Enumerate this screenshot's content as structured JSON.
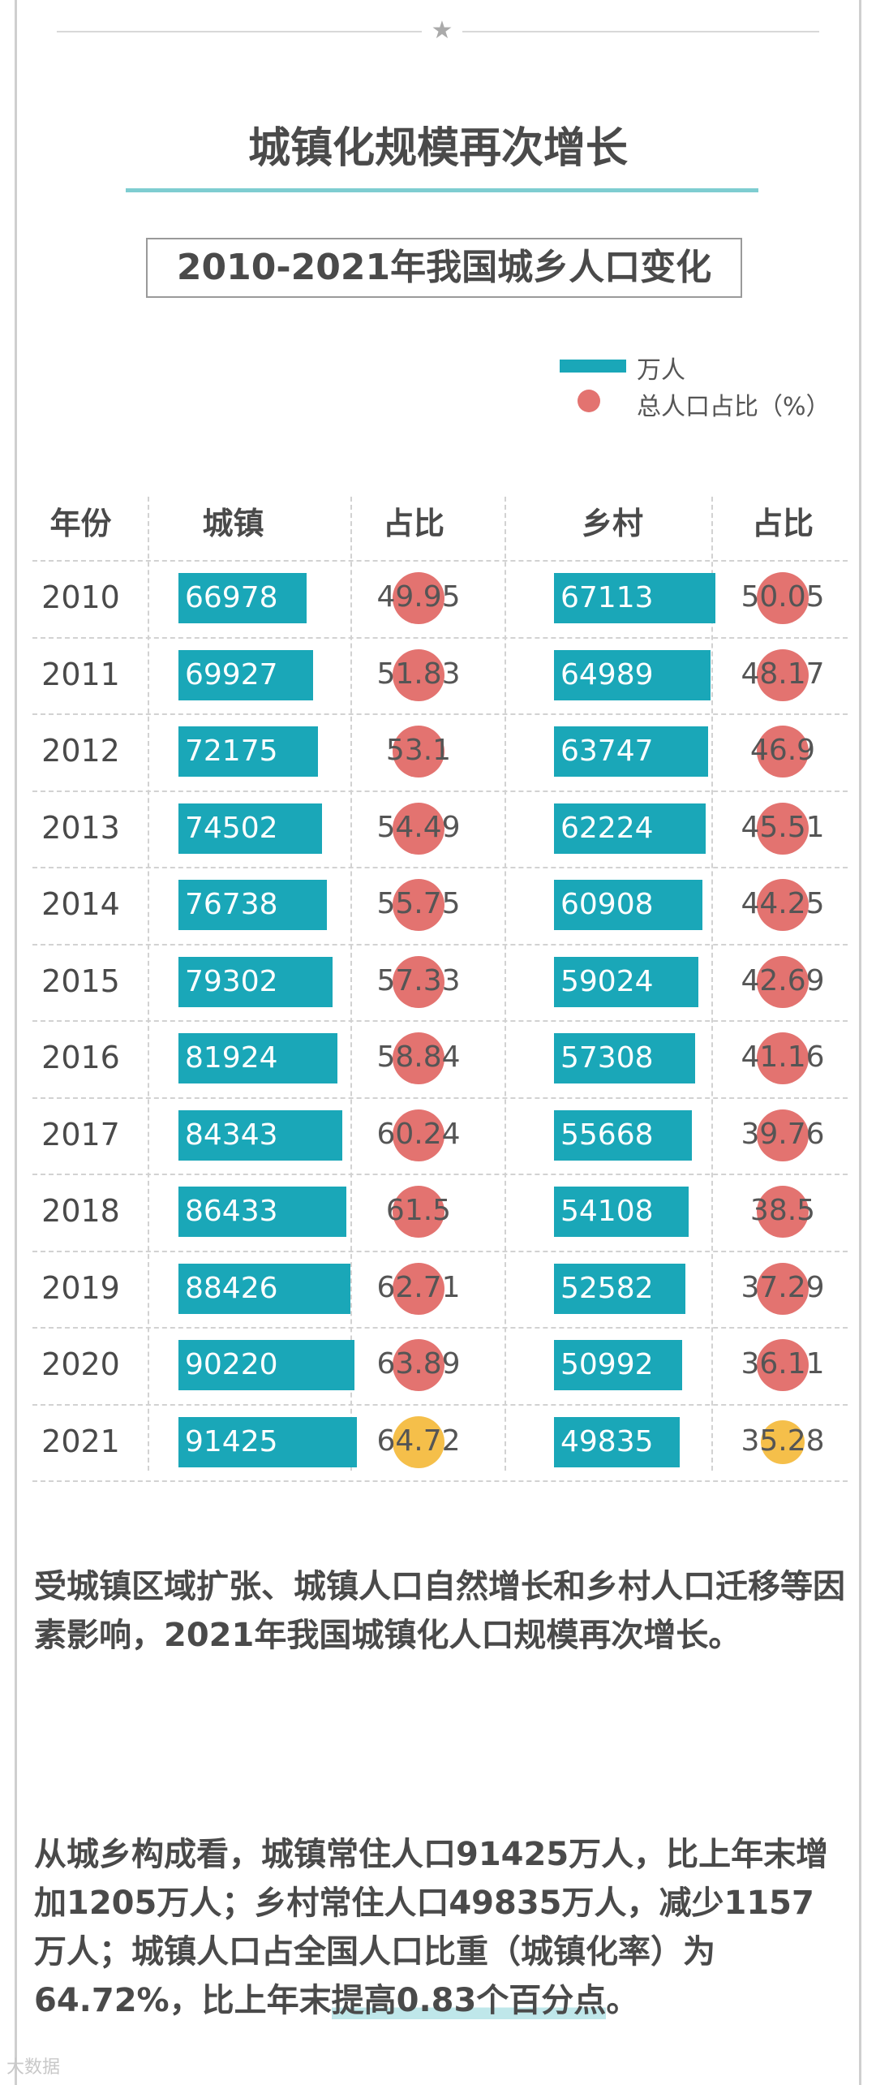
{
  "page": {
    "title": "城镇化规模再次增长",
    "subtitle": "2010-2021年我国城乡人口变化",
    "star_icon": "star-icon",
    "watermark": "大数据"
  },
  "legend": {
    "bar_label": "万人",
    "dot_label": "总人口占比（%）"
  },
  "colors": {
    "bar": "#1aa7b8",
    "dot": "#e37370",
    "dot_highlight": "#f5bf4a",
    "accent_line": "#7ecdd1"
  },
  "chart_data": {
    "type": "table",
    "columns": [
      "年份",
      "城镇",
      "占比",
      "乡村",
      "占比"
    ],
    "years": [
      "2010",
      "2011",
      "2012",
      "2013",
      "2014",
      "2015",
      "2016",
      "2017",
      "2018",
      "2019",
      "2020",
      "2021"
    ],
    "urban": [
      66978,
      69927,
      72175,
      74502,
      76738,
      79302,
      81924,
      84343,
      86433,
      88426,
      90220,
      91425
    ],
    "urban_pct": [
      "49.95",
      "51.83",
      "53.1",
      "54.49",
      "55.75",
      "57.33",
      "58.84",
      "60.24",
      "61.5",
      "62.71",
      "63.89",
      "64.72"
    ],
    "rural": [
      67113,
      64989,
      63747,
      62224,
      60908,
      59024,
      57308,
      55668,
      54108,
      52582,
      50992,
      49835
    ],
    "rural_pct": [
      "50.05",
      "48.17",
      "46.9",
      "45.51",
      "44.25",
      "42.69",
      "41.16",
      "39.76",
      "38.5",
      "37.29",
      "36.11",
      "35.28"
    ],
    "highlight_year": "2021"
  },
  "paragraphs": {
    "p1": "受城镇区域扩张、城镇人口自然增长和乡村人口迁移等因素影响，2021年我国城镇化人口规模再次增长。",
    "p2_before": "从城乡构成看，城镇常住人口91425万人，比上年末增加1205万人；乡村常住人口49835万人，减少1157万人；城镇人口占全国人口比重（城镇化率）为64.72%，比上年末",
    "p2_highlight": "提高0.83个百分点",
    "p2_after": "。"
  }
}
